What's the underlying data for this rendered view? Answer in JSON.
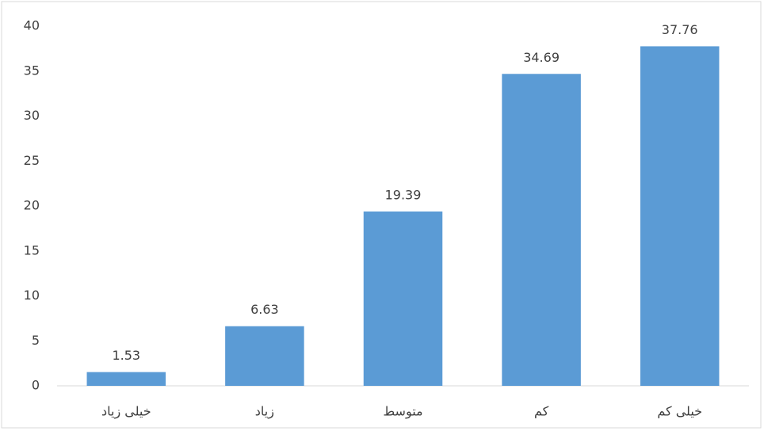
{
  "chart_data": {
    "type": "bar",
    "categories": [
      "خیلی زیاد",
      "زیاد",
      "متوسط",
      "کم",
      "خیلی کم"
    ],
    "values": [
      1.53,
      6.63,
      19.39,
      34.69,
      37.76
    ],
    "color": "#5b9bd5",
    "ylim": [
      0,
      40
    ],
    "yticks": [
      0,
      5,
      10,
      15,
      20,
      25,
      30,
      35,
      40
    ],
    "grid": false
  }
}
